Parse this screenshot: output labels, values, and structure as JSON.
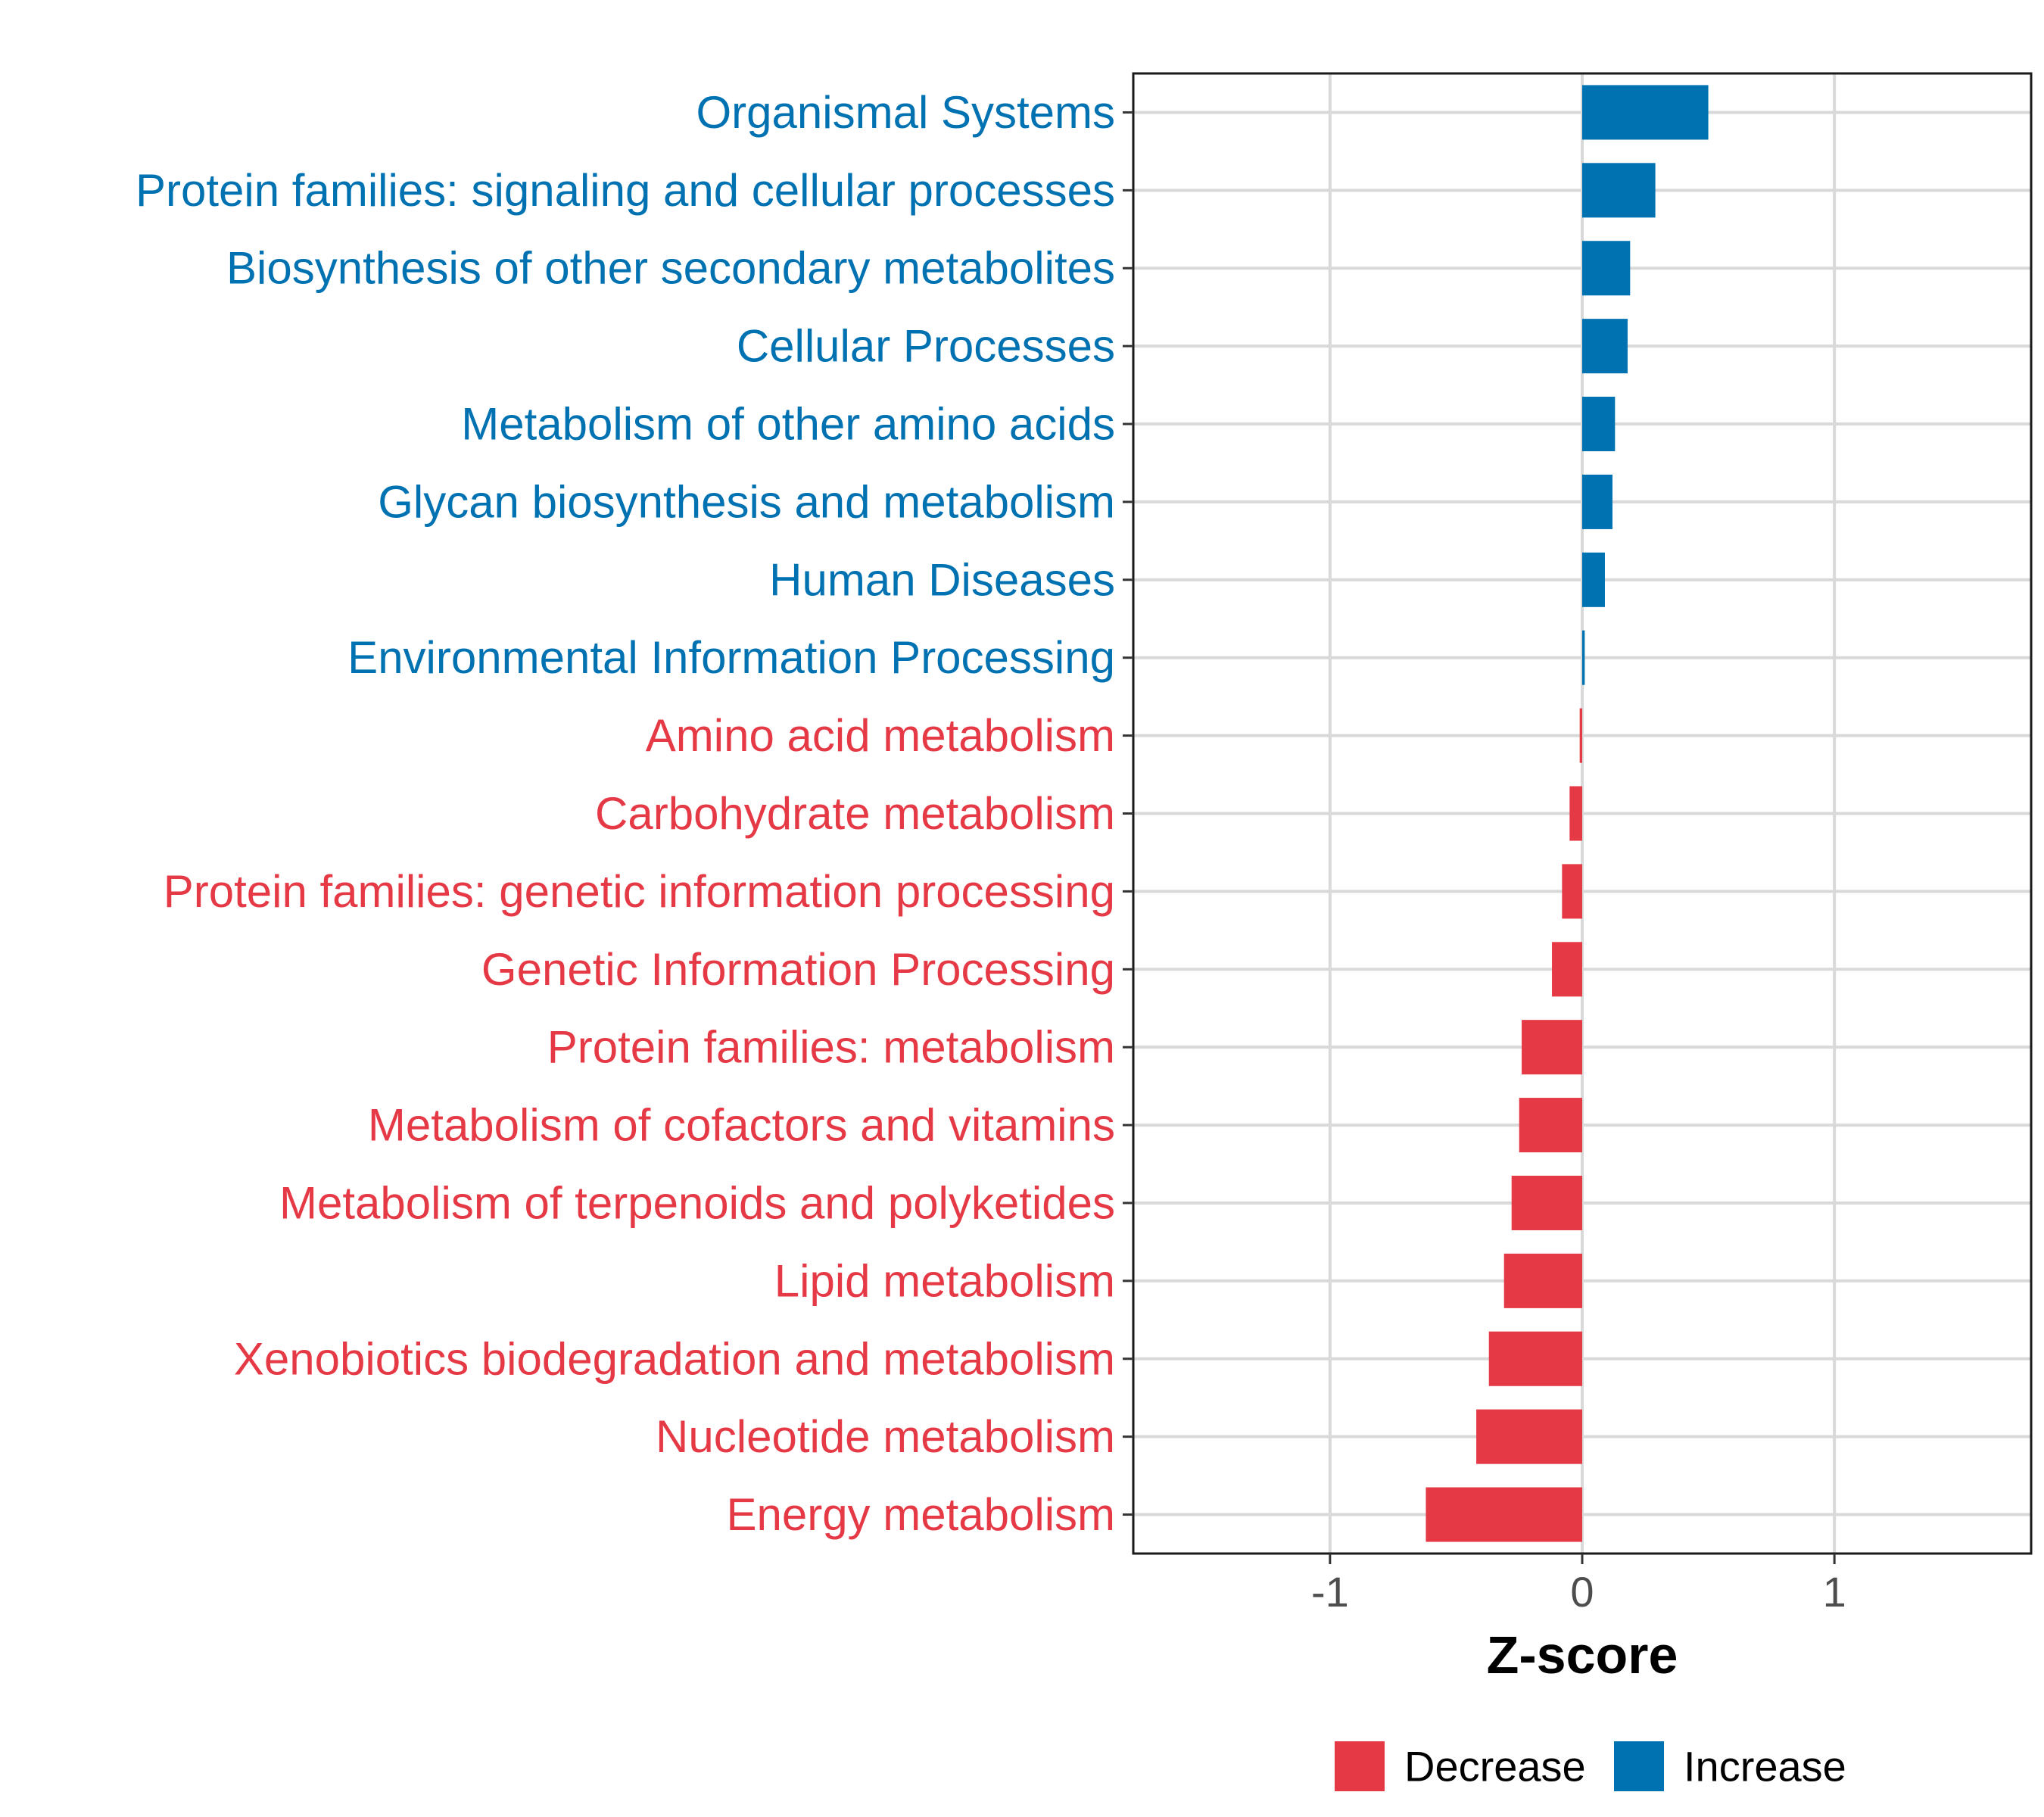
{
  "chart_data": {
    "type": "bar",
    "orientation": "horizontal",
    "title": "",
    "xlabel": "Z-score",
    "ylabel": "",
    "xlim": [
      -1.78,
      1.78
    ],
    "xticks": [
      -1,
      0,
      1
    ],
    "xtick_labels": [
      "-1",
      "0",
      "1"
    ],
    "grid": true,
    "legend_position": "bottom",
    "colors": {
      "Decrease": "#E63946",
      "Increase": "#0072B2"
    },
    "legend": [
      {
        "label": "Decrease",
        "color": "#E63946"
      },
      {
        "label": "Increase",
        "color": "#0072B2"
      }
    ],
    "categories": [
      "Organismal Systems",
      "Protein families: signaling and cellular processes",
      "Biosynthesis of other secondary metabolites",
      "Cellular Processes",
      "Metabolism of other amino acids",
      "Glycan biosynthesis and metabolism",
      "Human Diseases",
      "Environmental Information Processing",
      "Amino acid metabolism",
      "Carbohydrate metabolism",
      "Protein families: genetic information processing",
      "Genetic Information Processing",
      "Protein families: metabolism",
      "Metabolism of cofactors and vitamins",
      "Metabolism of terpenoids and polyketides",
      "Lipid metabolism",
      "Xenobiotics biodegradation and metabolism",
      "Nucleotide metabolism",
      "Energy metabolism"
    ],
    "values": [
      0.5,
      0.29,
      0.19,
      0.18,
      0.13,
      0.12,
      0.09,
      0.01,
      -0.01,
      -0.05,
      -0.08,
      -0.12,
      -0.24,
      -0.25,
      -0.28,
      -0.31,
      -0.37,
      -0.42,
      -0.62
    ],
    "groups": [
      "Increase",
      "Increase",
      "Increase",
      "Increase",
      "Increase",
      "Increase",
      "Increase",
      "Increase",
      "Decrease",
      "Decrease",
      "Decrease",
      "Decrease",
      "Decrease",
      "Decrease",
      "Decrease",
      "Decrease",
      "Decrease",
      "Decrease",
      "Decrease"
    ]
  }
}
